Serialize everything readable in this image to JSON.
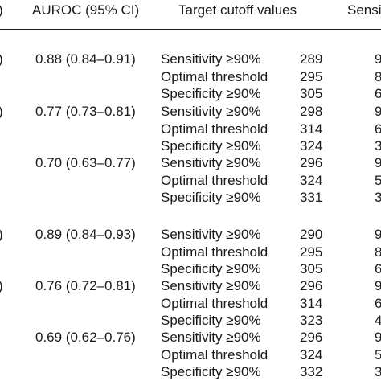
{
  "header": {
    "col_clipped_left": ")",
    "auroc": "AUROC (95% CI)",
    "target": "Target cutoff values",
    "sens_clipped": "Sensi"
  },
  "groups": [
    {
      "clipped_left": ")",
      "auroc": "0.88 (0.84–0.91)",
      "rows": [
        {
          "label": "Sensitivity ≥90%",
          "value": "289",
          "clipped": "9"
        },
        {
          "label": "Optimal threshold",
          "value": "295",
          "clipped": "8"
        },
        {
          "label": "Specificity ≥90%",
          "value": "305",
          "clipped": "6"
        }
      ]
    },
    {
      "clipped_left": ")",
      "auroc": "0.77 (0.73–0.81)",
      "rows": [
        {
          "label": "Sensitivity ≥90%",
          "value": "298",
          "clipped": "9"
        },
        {
          "label": "Optimal threshold",
          "value": "314",
          "clipped": "6"
        },
        {
          "label": "Specificity ≥90%",
          "value": "324",
          "clipped": "3"
        }
      ]
    },
    {
      "clipped_left": "",
      "auroc": "0.70 (0.63–0.77)",
      "rows": [
        {
          "label": "Sensitivity ≥90%",
          "value": "296",
          "clipped": "9"
        },
        {
          "label": "Optimal threshold",
          "value": "324",
          "clipped": "5"
        },
        {
          "label": "Specificity ≥90%",
          "value": "331",
          "clipped": "3"
        }
      ]
    },
    {
      "clipped_left": ")",
      "auroc": "0.89 (0.84–0.93)",
      "rows": [
        {
          "label": "Sensitivity ≥90%",
          "value": "290",
          "clipped": "9"
        },
        {
          "label": "Optimal threshold",
          "value": "295",
          "clipped": "8"
        },
        {
          "label": "Specificity ≥90%",
          "value": "305",
          "clipped": "6"
        }
      ]
    },
    {
      "clipped_left": ")",
      "auroc": "0.76 (0.72–0.81)",
      "rows": [
        {
          "label": "Sensitivity ≥90%",
          "value": "296",
          "clipped": "9"
        },
        {
          "label": "Optimal threshold",
          "value": "314",
          "clipped": "6"
        },
        {
          "label": "Specificity ≥90%",
          "value": "323",
          "clipped": "4"
        }
      ]
    },
    {
      "clipped_left": "",
      "auroc": "0.69 (0.62–0.76)",
      "rows": [
        {
          "label": "Sensitivity ≥90%",
          "value": "296",
          "clipped": "9"
        },
        {
          "label": "Optimal threshold",
          "value": "324",
          "clipped": "5"
        },
        {
          "label": "Specificity ≥90%",
          "value": "332",
          "clipped": "3"
        }
      ]
    }
  ]
}
